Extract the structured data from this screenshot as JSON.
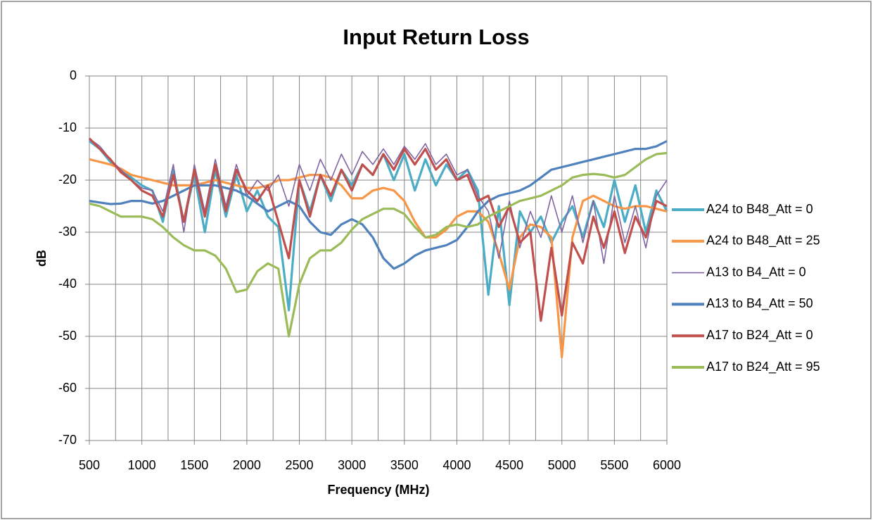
{
  "chart_data": {
    "type": "line",
    "title": "Input Return Loss",
    "xlabel": "Frequency (MHz)",
    "ylabel": "dB",
    "xlim": [
      500,
      6000
    ],
    "ylim": [
      -70,
      0
    ],
    "xticks": [
      500,
      1000,
      1500,
      2000,
      2500,
      3000,
      3500,
      4000,
      4500,
      5000,
      5500,
      6000
    ],
    "xminorticks": [
      750,
      1250,
      1750,
      2250,
      2750,
      3250,
      3750,
      4250,
      4750,
      5250,
      5750
    ],
    "yticks": [
      0,
      -10,
      -20,
      -30,
      -40,
      -50,
      -60,
      -70
    ],
    "grid": true,
    "legend": "right",
    "x": [
      500,
      600,
      700,
      800,
      900,
      1000,
      1100,
      1200,
      1300,
      1400,
      1500,
      1600,
      1700,
      1800,
      1900,
      2000,
      2100,
      2200,
      2300,
      2400,
      2500,
      2600,
      2700,
      2800,
      2900,
      3000,
      3100,
      3200,
      3300,
      3400,
      3500,
      3600,
      3700,
      3800,
      3900,
      4000,
      4100,
      4200,
      4300,
      4400,
      4500,
      4600,
      4700,
      4800,
      4900,
      5000,
      5100,
      5200,
      5300,
      5400,
      5500,
      5600,
      5700,
      5800,
      5900,
      6000
    ],
    "series": [
      {
        "name": "A24 to B48_Att = 0",
        "color": "#4bacc6",
        "values": [
          -12.5,
          -14,
          -16.5,
          -18,
          -19.5,
          -21,
          -22,
          -28,
          -18,
          -28,
          -19,
          -30,
          -18,
          -27,
          -19,
          -26,
          -22,
          -27,
          -29,
          -45,
          -20,
          -26,
          -19,
          -24,
          -18,
          -21,
          -17,
          -19,
          -15,
          -20,
          -15,
          -22,
          -16,
          -21,
          -17,
          -20,
          -18,
          -22,
          -42,
          -25,
          -44,
          -26,
          -30,
          -27,
          -32,
          -28,
          -25,
          -31,
          -24,
          -29,
          -20,
          -28,
          -21,
          -30,
          -22,
          -26
        ]
      },
      {
        "name": "A24 to B48_Att = 25",
        "color": "#f79646",
        "values": [
          -16,
          -16.5,
          -17,
          -17.8,
          -19,
          -19.5,
          -20,
          -20.5,
          -21,
          -21,
          -21,
          -20.5,
          -20,
          -20.5,
          -21,
          -21.5,
          -21.5,
          -21,
          -20,
          -20,
          -19.5,
          -19,
          -19,
          -19.5,
          -21,
          -23.5,
          -23.5,
          -22,
          -21.5,
          -22,
          -24,
          -28,
          -31,
          -31,
          -29.5,
          -27,
          -26,
          -26,
          -28,
          -34,
          -41,
          -31,
          -28.5,
          -29,
          -31,
          -54,
          -31,
          -24,
          -23,
          -24,
          -25,
          -25.5,
          -25,
          -25,
          -25.5,
          -26
        ]
      },
      {
        "name": "A13 to B4_Att = 0",
        "color": "#8064a2",
        "values": [
          -12,
          -13.5,
          -16,
          -18,
          -20,
          -21.5,
          -22,
          -26,
          -17,
          -30,
          -17,
          -26,
          -16,
          -25,
          -17,
          -23,
          -20,
          -22,
          -19,
          -25,
          -17,
          -22,
          -16,
          -20,
          -15,
          -19,
          -14.5,
          -17,
          -14,
          -17,
          -13.5,
          -16,
          -13,
          -17,
          -15,
          -19,
          -18,
          -23,
          -26,
          -35,
          -24,
          -33,
          -26,
          -31,
          -23,
          -30,
          -23,
          -32,
          -24,
          -36,
          -23,
          -32,
          -25,
          -33,
          -23,
          -20
        ]
      },
      {
        "name": "A13 to B4_Att = 50",
        "color": "#4f81bd",
        "values": [
          -24,
          -24.3,
          -24.6,
          -24.5,
          -24,
          -24,
          -24.5,
          -24,
          -23,
          -22,
          -21,
          -21,
          -21,
          -21.5,
          -22,
          -23,
          -24.5,
          -26,
          -25,
          -24,
          -25,
          -28,
          -30,
          -30.5,
          -28.5,
          -27.5,
          -28.5,
          -31,
          -35,
          -37,
          -36,
          -34.5,
          -33.5,
          -33,
          -32.5,
          -31.5,
          -29,
          -26,
          -24,
          -23,
          -22.5,
          -22,
          -21,
          -19.5,
          -18,
          -17.5,
          -17,
          -16.5,
          -16,
          -15.5,
          -15,
          -14.5,
          -14,
          -14,
          -13.5,
          -12.5
        ]
      },
      {
        "name": "A17 to B24_Att = 0",
        "color": "#c0504d",
        "values": [
          -12,
          -14,
          -16,
          -18.5,
          -20,
          -22,
          -23,
          -27,
          -19,
          -28,
          -18,
          -27,
          -17,
          -26,
          -18,
          -22,
          -24,
          -21,
          -28,
          -35,
          -20,
          -27,
          -19,
          -23,
          -18,
          -22,
          -17,
          -19,
          -15,
          -18,
          -14,
          -17,
          -14,
          -18,
          -16,
          -20,
          -19,
          -24,
          -23,
          -29,
          -25,
          -32,
          -30,
          -47,
          -33,
          -46,
          -32,
          -36,
          -27,
          -33,
          -26,
          -34,
          -27,
          -31,
          -24,
          -25
        ]
      },
      {
        "name": "A17 to B24_Att = 95",
        "color": "#9bbb59",
        "values": [
          -24.5,
          -25,
          -26,
          -27,
          -27,
          -27,
          -27.5,
          -29,
          -31,
          -32.5,
          -33.5,
          -33.5,
          -34.5,
          -37,
          -41.5,
          -41,
          -37.5,
          -36,
          -37,
          -50,
          -40,
          -35,
          -33.5,
          -33.5,
          -32,
          -29.5,
          -27.5,
          -26.5,
          -25.5,
          -25.5,
          -26.5,
          -29,
          -31,
          -30.5,
          -29,
          -28.5,
          -29,
          -28.5,
          -27,
          -26,
          -25,
          -24,
          -23.5,
          -23,
          -22,
          -21,
          -19.5,
          -19,
          -18.8,
          -19,
          -19.5,
          -19,
          -17.5,
          -16,
          -15,
          -14.8
        ]
      }
    ]
  }
}
